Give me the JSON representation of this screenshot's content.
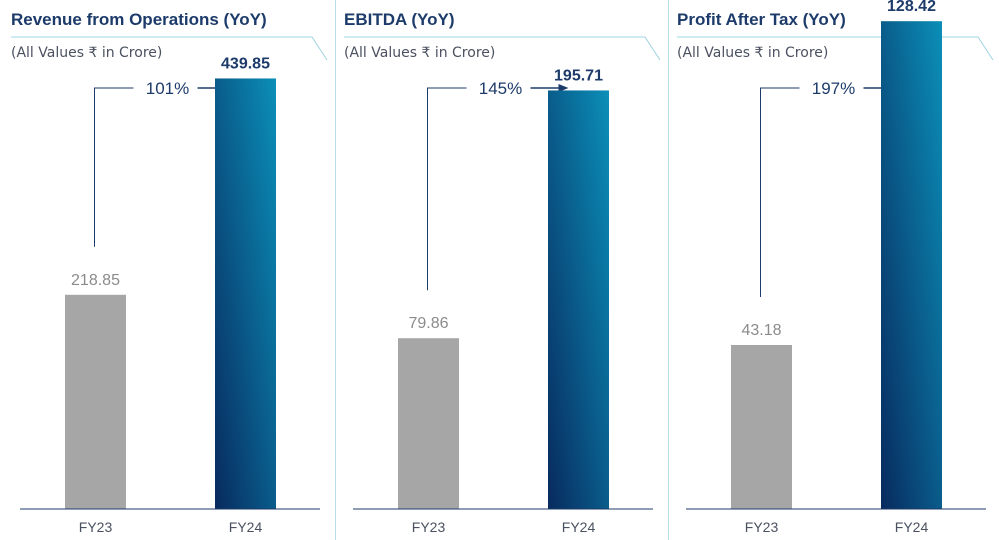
{
  "colors": {
    "title": "#1d3b6a",
    "prev_bar": "#a6a6a6",
    "curr_bar_top": "#0b8fb8",
    "curr_bar_bottom": "#082a5e",
    "bracket": "#1d3b6a",
    "axis": "#1d3b6a",
    "underline": "#9fd4e0"
  },
  "chart_data": [
    {
      "type": "bar",
      "title": "Revenue from Operations (YoY)",
      "subtitle": "(All Values ₹ in Crore)",
      "categories": [
        "FY23",
        "FY24"
      ],
      "values": [
        218.85,
        439.85
      ],
      "value_labels": [
        "218.85",
        "439.85"
      ],
      "growth_label": "101%",
      "ylim": [
        0,
        520
      ],
      "grid": false
    },
    {
      "type": "bar",
      "title": "EBITDA (YoY)",
      "subtitle": "(All Values ₹ in Crore)",
      "categories": [
        "FY23",
        "FY24"
      ],
      "values": [
        79.86,
        195.71
      ],
      "value_labels": [
        "79.86",
        "195.71"
      ],
      "growth_label": "145%",
      "ylim": [
        0,
        238
      ],
      "grid": false
    },
    {
      "type": "bar",
      "title": "Profit After Tax (YoY)",
      "subtitle": "(All Values ₹ in Crore)",
      "categories": [
        "FY23",
        "FY24"
      ],
      "values": [
        43.18,
        128.42
      ],
      "value_labels": [
        "43.18",
        "128.42"
      ],
      "growth_label": "197%",
      "ylim": [
        0,
        134
      ],
      "grid": false
    }
  ]
}
